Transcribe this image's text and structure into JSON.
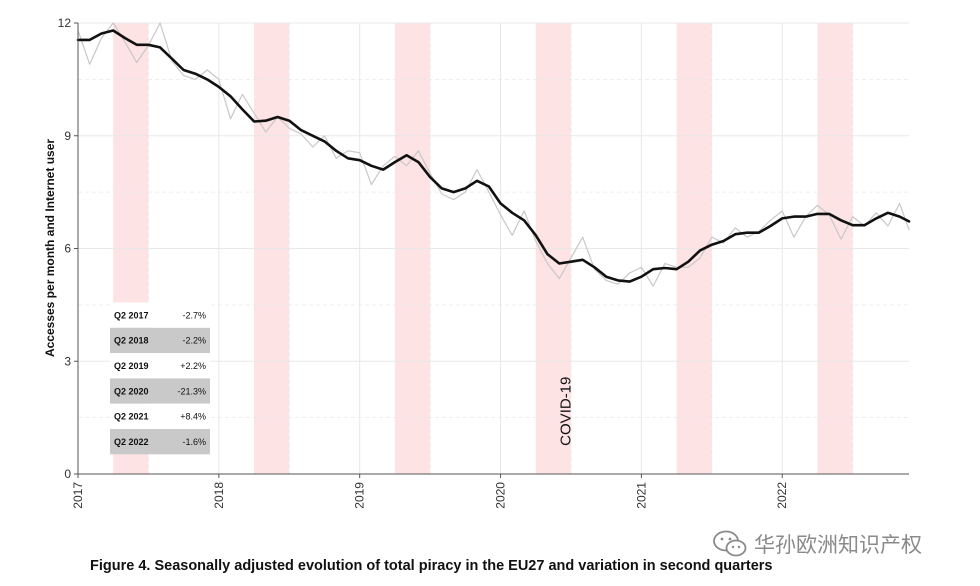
{
  "chart_data": {
    "type": "line",
    "ylabel": "Accesses per month and Internet user",
    "xlim": [
      2017.0,
      2022.9
    ],
    "ylim": [
      0,
      12
    ],
    "y_ticks": [
      0,
      3,
      6,
      9,
      12
    ],
    "x_ticks": [
      {
        "label": "2017",
        "value": 2017
      },
      {
        "label": "2018",
        "value": 2018
      },
      {
        "label": "2019",
        "value": 2019
      },
      {
        "label": "2020",
        "value": 2020
      },
      {
        "label": "2021",
        "value": 2021
      },
      {
        "label": "2022",
        "value": 2022
      }
    ],
    "grid": true,
    "shaded_periods": [
      {
        "from": 2017.25,
        "to": 2017.5
      },
      {
        "from": 2018.25,
        "to": 2018.5
      },
      {
        "from": 2019.25,
        "to": 2019.5
      },
      {
        "from": 2020.25,
        "to": 2020.5
      },
      {
        "from": 2021.25,
        "to": 2021.5
      },
      {
        "from": 2022.25,
        "to": 2022.5
      }
    ],
    "series": [
      {
        "kind": "seasonally_adjusted",
        "color": "#111111",
        "x": [
          2017.0,
          2017.083,
          2017.167,
          2017.25,
          2017.333,
          2017.417,
          2017.5,
          2017.583,
          2017.667,
          2017.75,
          2017.833,
          2017.917,
          2018.0,
          2018.083,
          2018.167,
          2018.25,
          2018.333,
          2018.417,
          2018.5,
          2018.583,
          2018.667,
          2018.75,
          2018.833,
          2018.917,
          2019.0,
          2019.083,
          2019.167,
          2019.25,
          2019.333,
          2019.417,
          2019.5,
          2019.583,
          2019.667,
          2019.75,
          2019.833,
          2019.917,
          2020.0,
          2020.083,
          2020.167,
          2020.25,
          2020.333,
          2020.417,
          2020.5,
          2020.583,
          2020.667,
          2020.75,
          2020.833,
          2020.917,
          2021.0,
          2021.083,
          2021.167,
          2021.25,
          2021.333,
          2021.417,
          2021.5,
          2021.583,
          2021.667,
          2021.75,
          2021.833,
          2021.917,
          2022.0,
          2022.083,
          2022.167,
          2022.25,
          2022.333,
          2022.417,
          2022.5,
          2022.583,
          2022.667,
          2022.75,
          2022.833,
          2022.9
        ],
        "y": [
          11.55,
          11.55,
          11.72,
          11.8,
          11.6,
          11.42,
          11.42,
          11.35,
          11.05,
          10.75,
          10.65,
          10.5,
          10.3,
          10.05,
          9.7,
          9.38,
          9.4,
          9.5,
          9.4,
          9.15,
          9.0,
          8.85,
          8.6,
          8.4,
          8.35,
          8.2,
          8.1,
          8.3,
          8.48,
          8.3,
          7.9,
          7.6,
          7.5,
          7.6,
          7.8,
          7.65,
          7.2,
          6.95,
          6.75,
          6.35,
          5.85,
          5.6,
          5.65,
          5.7,
          5.5,
          5.25,
          5.15,
          5.12,
          5.25,
          5.45,
          5.48,
          5.45,
          5.65,
          5.95,
          6.1,
          6.2,
          6.38,
          6.42,
          6.42,
          6.6,
          6.8,
          6.85,
          6.85,
          6.92,
          6.92,
          6.75,
          6.62,
          6.62,
          6.8,
          6.95,
          6.85,
          6.72
        ]
      },
      {
        "kind": "raw",
        "color": "#c8c8c8",
        "x": [
          2017.0,
          2017.083,
          2017.167,
          2017.25,
          2017.333,
          2017.417,
          2017.5,
          2017.583,
          2017.667,
          2017.75,
          2017.833,
          2017.917,
          2018.0,
          2018.083,
          2018.167,
          2018.25,
          2018.333,
          2018.417,
          2018.5,
          2018.583,
          2018.667,
          2018.75,
          2018.833,
          2018.917,
          2019.0,
          2019.083,
          2019.167,
          2019.25,
          2019.333,
          2019.417,
          2019.5,
          2019.583,
          2019.667,
          2019.75,
          2019.833,
          2019.917,
          2020.0,
          2020.083,
          2020.167,
          2020.25,
          2020.333,
          2020.417,
          2020.5,
          2020.583,
          2020.667,
          2020.75,
          2020.833,
          2020.917,
          2021.0,
          2021.083,
          2021.167,
          2021.25,
          2021.333,
          2021.417,
          2021.5,
          2021.583,
          2021.667,
          2021.75,
          2021.833,
          2021.917,
          2022.0,
          2022.083,
          2022.167,
          2022.25,
          2022.333,
          2022.417,
          2022.5,
          2022.583,
          2022.667,
          2022.75,
          2022.833,
          2022.9
        ],
        "y": [
          11.8,
          10.9,
          11.6,
          12.0,
          11.5,
          10.95,
          11.4,
          12.0,
          11.0,
          10.6,
          10.5,
          10.75,
          10.5,
          9.45,
          10.1,
          9.6,
          9.1,
          9.5,
          9.2,
          9.05,
          8.7,
          9.0,
          8.4,
          8.6,
          8.55,
          7.7,
          8.2,
          8.45,
          8.2,
          8.6,
          8.0,
          7.45,
          7.3,
          7.5,
          8.1,
          7.5,
          6.9,
          6.35,
          7.0,
          6.2,
          5.6,
          5.2,
          5.75,
          6.3,
          5.45,
          5.15,
          5.05,
          5.35,
          5.5,
          5.0,
          5.6,
          5.5,
          5.5,
          5.75,
          6.3,
          6.15,
          6.55,
          6.3,
          6.45,
          6.75,
          7.0,
          6.3,
          6.85,
          7.15,
          6.9,
          6.25,
          6.85,
          6.6,
          6.95,
          6.6,
          7.2,
          6.5
        ]
      }
    ],
    "annotations": [
      {
        "text": "COVID-19",
        "x": 2020.1,
        "y": 0.75
      }
    ],
    "inset_table": [
      {
        "quarter": "Q2 2017",
        "value": "-2.7%"
      },
      {
        "quarter": "Q2 2018",
        "value": "-2.2%"
      },
      {
        "quarter": "Q2 2019",
        "value": "+2.2%"
      },
      {
        "quarter": "Q2 2020",
        "value": "-21.3%"
      },
      {
        "quarter": "Q2 2021",
        "value": "+8.4%"
      },
      {
        "quarter": "Q2 2022",
        "value": "-1.6%"
      }
    ],
    "colors": {
      "shade": "#fde3e3",
      "table_alt": "#c9c9c9",
      "grid": "#e8e8e8"
    }
  },
  "caption": "Figure 4. Seasonally adjusted evolution of total piracy in the EU27 and variation in second quarters",
  "watermark": {
    "text": "华孙欧洲知识产权",
    "icon": "wechat-icon"
  }
}
